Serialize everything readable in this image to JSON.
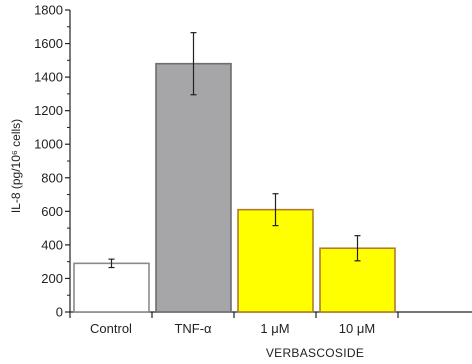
{
  "chart_data": {
    "type": "bar",
    "title": "",
    "ylabel": "IL-8 (pg/10⁶ cells)",
    "xlabel": "",
    "ylim": [
      0,
      1800
    ],
    "yticks": [
      0,
      200,
      400,
      600,
      800,
      1000,
      1200,
      1400,
      1600,
      1800
    ],
    "ytick_labels": [
      "0",
      "200",
      "400",
      "600",
      "800",
      "1000",
      "1200",
      "1400",
      "1600",
      "1800"
    ],
    "categories": [
      "Control",
      "TNF-α",
      "1 μM",
      "10 μM"
    ],
    "values": [
      290,
      1480,
      610,
      380
    ],
    "errors": [
      25,
      185,
      95,
      75
    ],
    "group_label": "VERBASCOSIDE",
    "group_categories": [
      "1 μM",
      "10 μM"
    ],
    "grid": false,
    "colors": {
      "fills": [
        "#ffffff",
        "#a6a6a8",
        "#ffff00",
        "#ffff00"
      ],
      "strokes": [
        "#8a8a8a",
        "#6e6e70",
        "#b07c2c",
        "#b07c2c"
      ],
      "axis": "#222222",
      "error_bar": "#222222"
    }
  }
}
